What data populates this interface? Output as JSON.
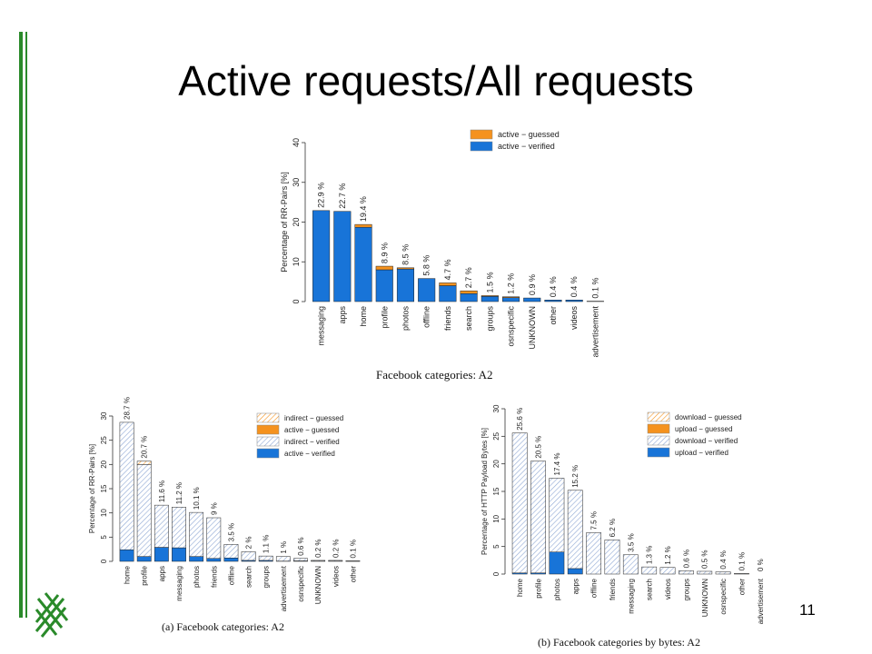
{
  "slide": {
    "title": "Active requests/All requests",
    "page_number": "11",
    "accent_color": "#2a8a2a"
  },
  "chart_data": [
    {
      "type": "bar",
      "stacked": true,
      "ylabel": "Percentage of RR-Pairs [%]",
      "ylim": [
        0,
        40
      ],
      "yticks": [
        0,
        10,
        20,
        30,
        40
      ],
      "caption": "Facebook categories: A2",
      "legend_position": "top-right",
      "categories": [
        "messaging",
        "apps",
        "home",
        "profile",
        "photos",
        "offline",
        "friends",
        "search",
        "groups",
        "osnspecific",
        "UNKNOWN",
        "other",
        "videos",
        "advertisement"
      ],
      "value_labels": [
        "22.9 %",
        "22.7 %",
        "19.4 %",
        "8.9 %",
        "8.5 %",
        "5.8 %",
        "4.7 %",
        "2.7 %",
        "1.5 %",
        "1.2 %",
        "0.9 %",
        "0.4 %",
        "0.4 %",
        "0.1 %"
      ],
      "series": [
        {
          "name": "active − verified",
          "color": "#1874d8",
          "values": [
            22.9,
            22.7,
            18.7,
            8.0,
            8.2,
            5.8,
            4.0,
            2.0,
            1.3,
            1.0,
            0.9,
            0.4,
            0.4,
            0.1
          ]
        },
        {
          "name": "active − guessed",
          "color": "#f5921e",
          "values": [
            0.0,
            0.0,
            0.7,
            0.9,
            0.3,
            0.0,
            0.7,
            0.7,
            0.2,
            0.2,
            0.0,
            0.0,
            0.0,
            0.0
          ]
        }
      ]
    },
    {
      "type": "bar",
      "stacked": true,
      "ylabel": "Percentage of RR-Pairs [%]",
      "ylim": [
        0,
        30
      ],
      "yticks": [
        0,
        5,
        10,
        15,
        20,
        25,
        30
      ],
      "caption": "(a) Facebook categories: A2",
      "legend_position": "top-right",
      "categories": [
        "home",
        "profile",
        "apps",
        "messaging",
        "photos",
        "friends",
        "offline",
        "search",
        "groups",
        "advertisement",
        "osnspecific",
        "UNKNOWN",
        "videos",
        "other"
      ],
      "value_labels": [
        "28.7 %",
        "20.7 %",
        "11.6 %",
        "11.2 %",
        "10.1 %",
        "9 %",
        "3.5 %",
        "2 %",
        "1.1 %",
        "1 %",
        "0.6 %",
        "0.2 %",
        "0.2 %",
        "0.1 %"
      ],
      "series": [
        {
          "name": "active − verified",
          "color": "#1874d8",
          "pattern": "solid",
          "values": [
            2.4,
            1.0,
            2.9,
            2.8,
            1.0,
            0.6,
            0.7,
            0.2,
            0.2,
            0.05,
            0.1,
            0.05,
            0.05,
            0.02
          ]
        },
        {
          "name": "indirect − verified",
          "color": "#8fa8d4",
          "pattern": "hatch",
          "values": [
            26.3,
            19.0,
            8.7,
            8.4,
            9.1,
            8.4,
            2.8,
            1.8,
            0.9,
            0.95,
            0.5,
            0.15,
            0.15,
            0.08
          ]
        },
        {
          "name": "active − guessed",
          "color": "#f5921e",
          "pattern": "solid",
          "values": [
            0,
            0,
            0,
            0,
            0,
            0,
            0,
            0,
            0,
            0,
            0,
            0,
            0,
            0
          ]
        },
        {
          "name": "indirect − guessed",
          "color": "#f5921e",
          "pattern": "hatch",
          "values": [
            0,
            0.7,
            0,
            0,
            0,
            0,
            0,
            0,
            0,
            0,
            0,
            0,
            0,
            0
          ]
        }
      ]
    },
    {
      "type": "bar",
      "stacked": true,
      "ylabel": "Percentage of HTTP Payload Bytes [%]",
      "ylim": [
        0,
        30
      ],
      "yticks": [
        0,
        5,
        10,
        15,
        20,
        25,
        30
      ],
      "caption": "(b) Facebook categories by bytes: A2",
      "legend_position": "top-right",
      "categories": [
        "home",
        "profile",
        "photos",
        "apps",
        "offline",
        "friends",
        "messaging",
        "search",
        "videos",
        "groups",
        "UNKNOWN",
        "osnspecific",
        "other",
        "advertisement"
      ],
      "value_labels": [
        "25.6 %",
        "20.5 %",
        "17.4 %",
        "15.2 %",
        "7.5 %",
        "6.2 %",
        "3.5 %",
        "1.3 %",
        "1.2 %",
        "0.6 %",
        "0.5 %",
        "0.4 %",
        "0.1 %",
        "0 %"
      ],
      "series": [
        {
          "name": "upload − verified",
          "color": "#1874d8",
          "pattern": "solid",
          "values": [
            0.2,
            0.2,
            4.0,
            1.0,
            0,
            0,
            0,
            0,
            0,
            0,
            0,
            0,
            0,
            0
          ]
        },
        {
          "name": "download − verified",
          "color": "#8fa8d4",
          "pattern": "hatch",
          "values": [
            25.4,
            20.3,
            13.4,
            14.2,
            7.5,
            6.2,
            3.5,
            1.3,
            1.2,
            0.6,
            0.5,
            0.4,
            0.1,
            0
          ]
        },
        {
          "name": "upload − guessed",
          "color": "#f5921e",
          "pattern": "solid",
          "values": [
            0,
            0,
            0,
            0,
            0,
            0,
            0,
            0,
            0,
            0,
            0,
            0,
            0,
            0
          ]
        },
        {
          "name": "download − guessed",
          "color": "#f5921e",
          "pattern": "hatch",
          "values": [
            0,
            0,
            0,
            0,
            0,
            0,
            0,
            0,
            0,
            0,
            0,
            0,
            0,
            0
          ]
        }
      ]
    }
  ]
}
